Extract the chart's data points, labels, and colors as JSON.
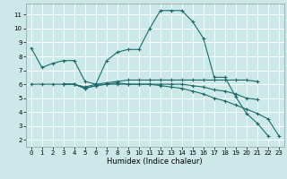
{
  "xlabel": "Humidex (Indice chaleur)",
  "background_color": "#cce8e8",
  "grid_color": "#ffffff",
  "line_color": "#1a6b6b",
  "xlim": [
    -0.5,
    23.5
  ],
  "ylim": [
    1.5,
    11.8
  ],
  "yticks": [
    2,
    3,
    4,
    5,
    6,
    7,
    8,
    9,
    10,
    11
  ],
  "xticks": [
    0,
    1,
    2,
    3,
    4,
    5,
    6,
    7,
    8,
    9,
    10,
    11,
    12,
    13,
    14,
    15,
    16,
    17,
    18,
    19,
    20,
    21,
    22,
    23
  ],
  "series": [
    {
      "x": [
        0,
        1,
        2,
        3,
        4,
        5,
        6,
        7,
        8,
        9,
        10,
        11,
        12,
        13,
        14,
        15,
        16,
        17,
        18,
        19,
        20,
        21,
        22
      ],
      "y": [
        8.6,
        7.2,
        7.5,
        7.7,
        7.7,
        6.2,
        6.0,
        7.7,
        8.3,
        8.5,
        8.5,
        10.0,
        11.3,
        11.3,
        11.3,
        10.5,
        9.3,
        6.5,
        6.5,
        5.1,
        3.9,
        3.2,
        2.3
      ]
    },
    {
      "x": [
        3,
        4,
        5,
        6,
        7,
        8,
        9,
        10,
        11,
        12,
        13,
        14,
        15,
        16,
        17,
        18,
        19,
        20,
        21
      ],
      "y": [
        6.0,
        6.0,
        5.8,
        6.0,
        6.1,
        6.2,
        6.3,
        6.3,
        6.3,
        6.3,
        6.3,
        6.3,
        6.3,
        6.3,
        6.3,
        6.3,
        6.3,
        6.3,
        6.2
      ]
    },
    {
      "x": [
        3,
        4,
        5,
        6,
        7,
        8,
        9,
        10,
        11,
        12,
        13,
        14,
        15,
        16,
        17,
        18,
        19,
        20,
        21
      ],
      "y": [
        6.0,
        6.0,
        5.7,
        5.9,
        6.0,
        6.0,
        6.0,
        6.0,
        6.0,
        6.0,
        6.0,
        6.0,
        5.9,
        5.8,
        5.6,
        5.5,
        5.3,
        5.0,
        4.9
      ]
    },
    {
      "x": [
        0,
        1,
        2,
        3,
        4,
        5,
        6,
        7,
        8,
        9,
        10,
        11,
        12,
        13,
        14,
        15,
        16,
        17,
        18,
        19,
        20,
        21,
        22,
        23
      ],
      "y": [
        6.0,
        6.0,
        6.0,
        6.0,
        6.0,
        5.7,
        5.9,
        6.0,
        6.1,
        6.0,
        6.0,
        6.0,
        5.9,
        5.8,
        5.7,
        5.5,
        5.3,
        5.0,
        4.8,
        4.5,
        4.2,
        3.9,
        3.5,
        2.3
      ]
    }
  ]
}
